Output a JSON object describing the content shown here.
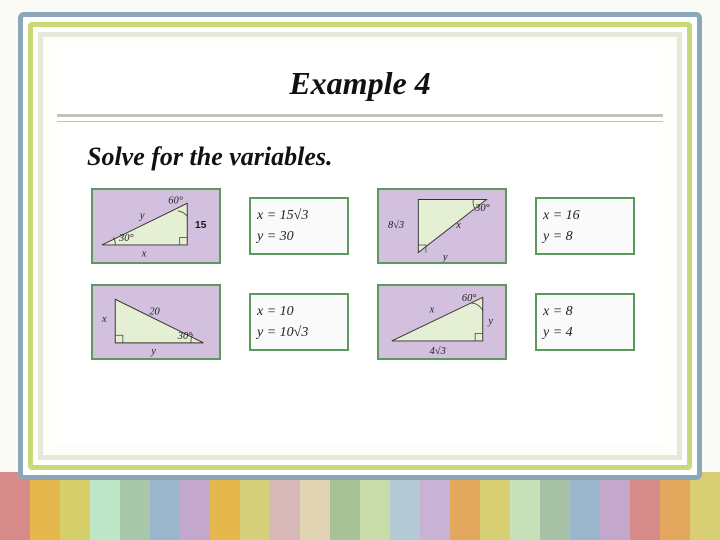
{
  "title": "Example 4",
  "subtitle": "Solve for the variables.",
  "triangles": [
    {
      "labels": {
        "y": "y",
        "x": "x",
        "hyp": "15",
        "a1": "30°",
        "a2": "60°"
      },
      "answer": {
        "x": "x = 15√3",
        "y": "y = 30"
      }
    },
    {
      "labels": {
        "hyp": "8√3",
        "x": "x",
        "y": "y",
        "a1": "30°"
      },
      "answer": {
        "x": "x = 16",
        "y": "y = 8"
      }
    },
    {
      "labels": {
        "x": "x",
        "hyp": "20",
        "y": "y",
        "a1": "30°"
      },
      "answer": {
        "x": "x = 10",
        "y": "y = 10√3"
      }
    },
    {
      "labels": {
        "x": "x",
        "y": "y",
        "base": "4√3",
        "a1": "60°"
      },
      "answer": {
        "x": "x = 8",
        "y": "y = 4"
      }
    }
  ],
  "stripe_colors": [
    "#d78a8a",
    "#e5b84e",
    "#d7d06a",
    "#bfe6c9",
    "#a9c7a9",
    "#9ab6cc",
    "#c3a8cc",
    "#e5b84e",
    "#d6d07a",
    "#d6b8b8",
    "#e0d4b2",
    "#a8c298",
    "#c7dca8",
    "#b3c9d4",
    "#c9b3d4",
    "#e4a75e",
    "#d8cf74",
    "#c7e2ba",
    "#a8c2a8",
    "#9ab6cc",
    "#c3a8cc",
    "#d78a8a",
    "#e4a75e",
    "#d8cf74"
  ]
}
